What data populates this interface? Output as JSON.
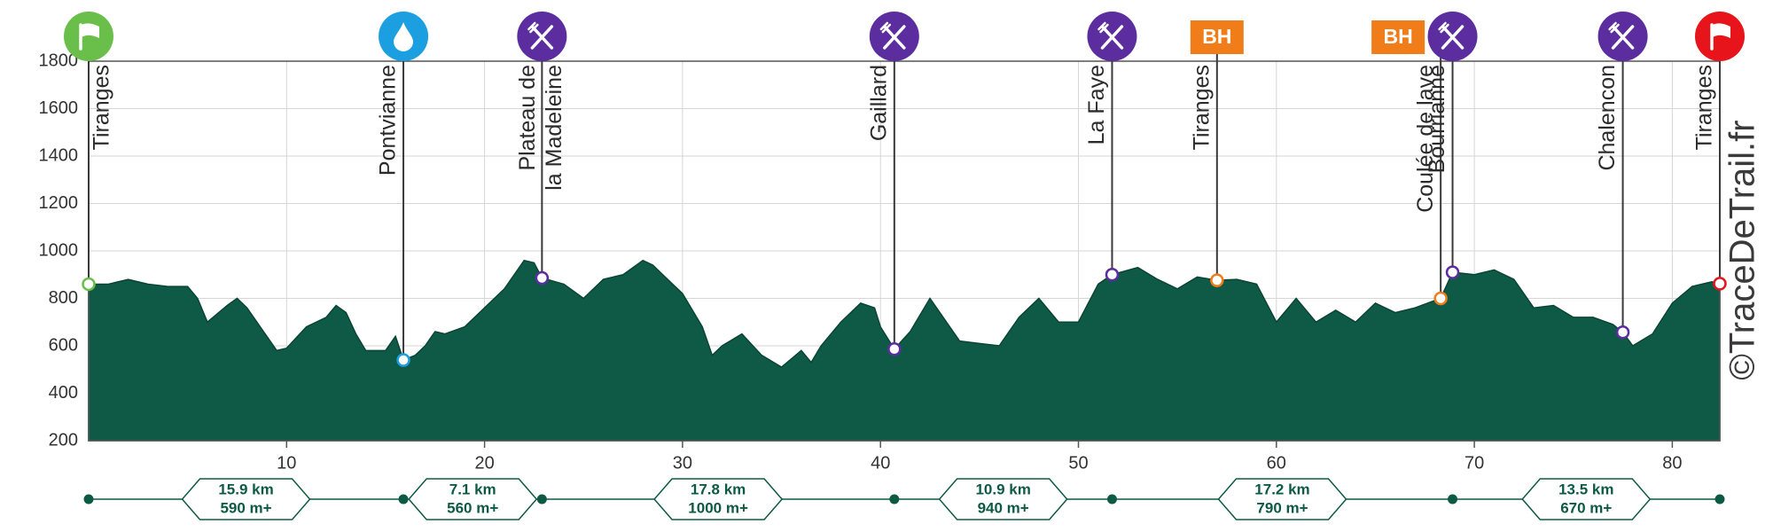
{
  "chart_data": {
    "type": "area",
    "x": [
      0,
      1,
      2,
      3,
      4,
      5,
      5.5,
      6,
      7,
      7.5,
      8,
      9,
      9.5,
      10,
      11,
      12,
      12.5,
      13,
      13.5,
      14,
      15,
      15.5,
      15.9,
      16.5,
      17,
      17.5,
      18,
      19,
      20,
      21,
      22,
      22.5,
      22.9,
      24,
      25,
      26,
      27,
      28,
      28.5,
      29,
      30,
      31,
      31.5,
      32,
      33,
      34,
      35,
      36,
      36.5,
      37,
      38,
      39,
      39.7,
      40,
      40.7,
      41.5,
      42,
      42.5,
      43,
      44,
      45,
      46,
      47,
      48,
      49,
      50,
      51,
      51.7,
      53,
      54,
      55,
      56,
      57,
      58,
      59,
      60,
      61,
      62,
      63,
      64,
      65,
      66,
      67,
      68.3,
      68.9,
      70,
      71,
      72,
      73,
      74,
      75,
      76,
      77,
      77.5,
      78,
      79,
      80,
      81,
      82,
      82.4
    ],
    "values": [
      860,
      860,
      880,
      860,
      850,
      850,
      800,
      700,
      770,
      800,
      760,
      640,
      580,
      590,
      680,
      720,
      770,
      740,
      650,
      580,
      580,
      640,
      540,
      560,
      600,
      660,
      650,
      680,
      760,
      840,
      960,
      950,
      886,
      860,
      800,
      880,
      900,
      960,
      940,
      900,
      820,
      680,
      560,
      600,
      650,
      560,
      510,
      580,
      530,
      600,
      700,
      780,
      760,
      680,
      586,
      660,
      730,
      800,
      740,
      620,
      610,
      600,
      720,
      800,
      700,
      700,
      860,
      900,
      930,
      880,
      840,
      890,
      876,
      880,
      860,
      700,
      800,
      700,
      750,
      700,
      780,
      740,
      760,
      800,
      910,
      900,
      920,
      880,
      760,
      770,
      720,
      720,
      690,
      657,
      600,
      650,
      780,
      850,
      870,
      862
    ],
    "color": "#0f5a46",
    "xlim": [
      0,
      82.4
    ],
    "xticks": [
      10,
      20,
      30,
      40,
      50,
      60,
      70,
      80
    ],
    "ylim": [
      200,
      1800
    ],
    "yticks": [
      200,
      400,
      600,
      800,
      1000,
      1200,
      1400,
      1600,
      1800
    ],
    "grid": true,
    "waypoints": [
      {
        "name": [
          "Tiranges"
        ],
        "x": 0,
        "elevation": 860,
        "kind": "start",
        "color": "#6abf4b"
      },
      {
        "name": [
          "Pontvianne"
        ],
        "x": 15.9,
        "elevation": 540,
        "kind": "water",
        "color": "#1c9fe0"
      },
      {
        "name": [
          "Plateau de",
          "la Madeleine"
        ],
        "x": 22.9,
        "elevation": 886,
        "kind": "food",
        "color": "#5b2d9e"
      },
      {
        "name": [
          "Gaillard"
        ],
        "x": 40.7,
        "elevation": 586,
        "kind": "food",
        "color": "#5b2d9e"
      },
      {
        "name": [
          "La Faye"
        ],
        "x": 51.7,
        "elevation": 900,
        "kind": "food",
        "color": "#5b2d9e"
      },
      {
        "name": [
          "Tiranges"
        ],
        "x": 57.0,
        "elevation": 876,
        "kind": "badge",
        "badge": "BH",
        "color": "#f07d19"
      },
      {
        "name": [
          "Coulée de lave"
        ],
        "x": 68.3,
        "elevation": 800,
        "kind": "badge",
        "badge": "BH",
        "color": "#f07d19"
      },
      {
        "name": [
          "Bourrianne"
        ],
        "x": 68.9,
        "elevation": 910,
        "kind": "food",
        "color": "#5b2d9e"
      },
      {
        "name": [
          "Chalencon"
        ],
        "x": 77.5,
        "elevation": 657,
        "kind": "food",
        "color": "#5b2d9e"
      },
      {
        "name": [
          "Tiranges"
        ],
        "x": 82.4,
        "elevation": 862,
        "kind": "finish",
        "color": "#e8141c"
      }
    ],
    "segments": {
      "bounds": [
        0,
        15.9,
        22.9,
        40.7,
        51.7,
        68.9,
        82.4
      ],
      "distances": [
        "15.9 km",
        "7.1 km",
        "17.8 km",
        "10.9 km",
        "17.2 km",
        "13.5 km"
      ],
      "gains": [
        "590 m+",
        "560 m+",
        "1000 m+",
        "940 m+",
        "790 m+",
        "670 m+"
      ]
    },
    "watermark": "©TraceDeTrail.fr"
  }
}
